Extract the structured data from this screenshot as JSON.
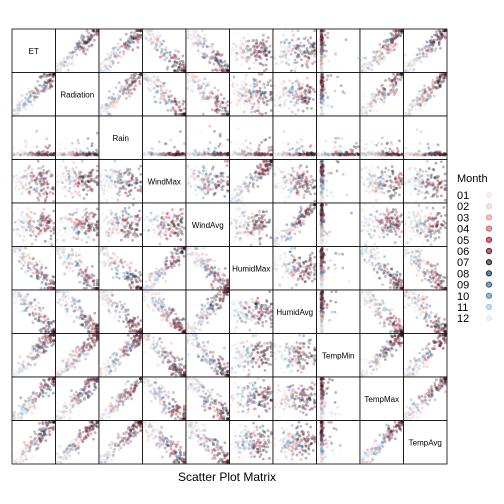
{
  "chart_data": {
    "type": "scatter",
    "xlabel": "Scatter Plot Matrix",
    "variables": [
      "TempAvg",
      "TempMax",
      "TempMin",
      "HumidAvg",
      "HumidMax",
      "WindAvg",
      "WindMax",
      "Rain",
      "Radiation",
      "ET"
    ],
    "legend": {
      "title": "Month",
      "placement": "right",
      "entries": [
        {
          "label": "01",
          "color": "#f7e6e2"
        },
        {
          "label": "02",
          "color": "#f4cdbf"
        },
        {
          "label": "03",
          "color": "#e89a86"
        },
        {
          "label": "04",
          "color": "#cf5f62"
        },
        {
          "label": "05",
          "color": "#b2182b"
        },
        {
          "label": "06",
          "color": "#6e1220"
        },
        {
          "label": "07",
          "color": "#1a1a1a"
        },
        {
          "label": "08",
          "color": "#14304f"
        },
        {
          "label": "09",
          "color": "#2b5c8a"
        },
        {
          "label": "10",
          "color": "#4a86b8"
        },
        {
          "label": "11",
          "color": "#9cc4df"
        },
        {
          "label": "12",
          "color": "#dbe9f2"
        }
      ]
    },
    "grid": false
  }
}
